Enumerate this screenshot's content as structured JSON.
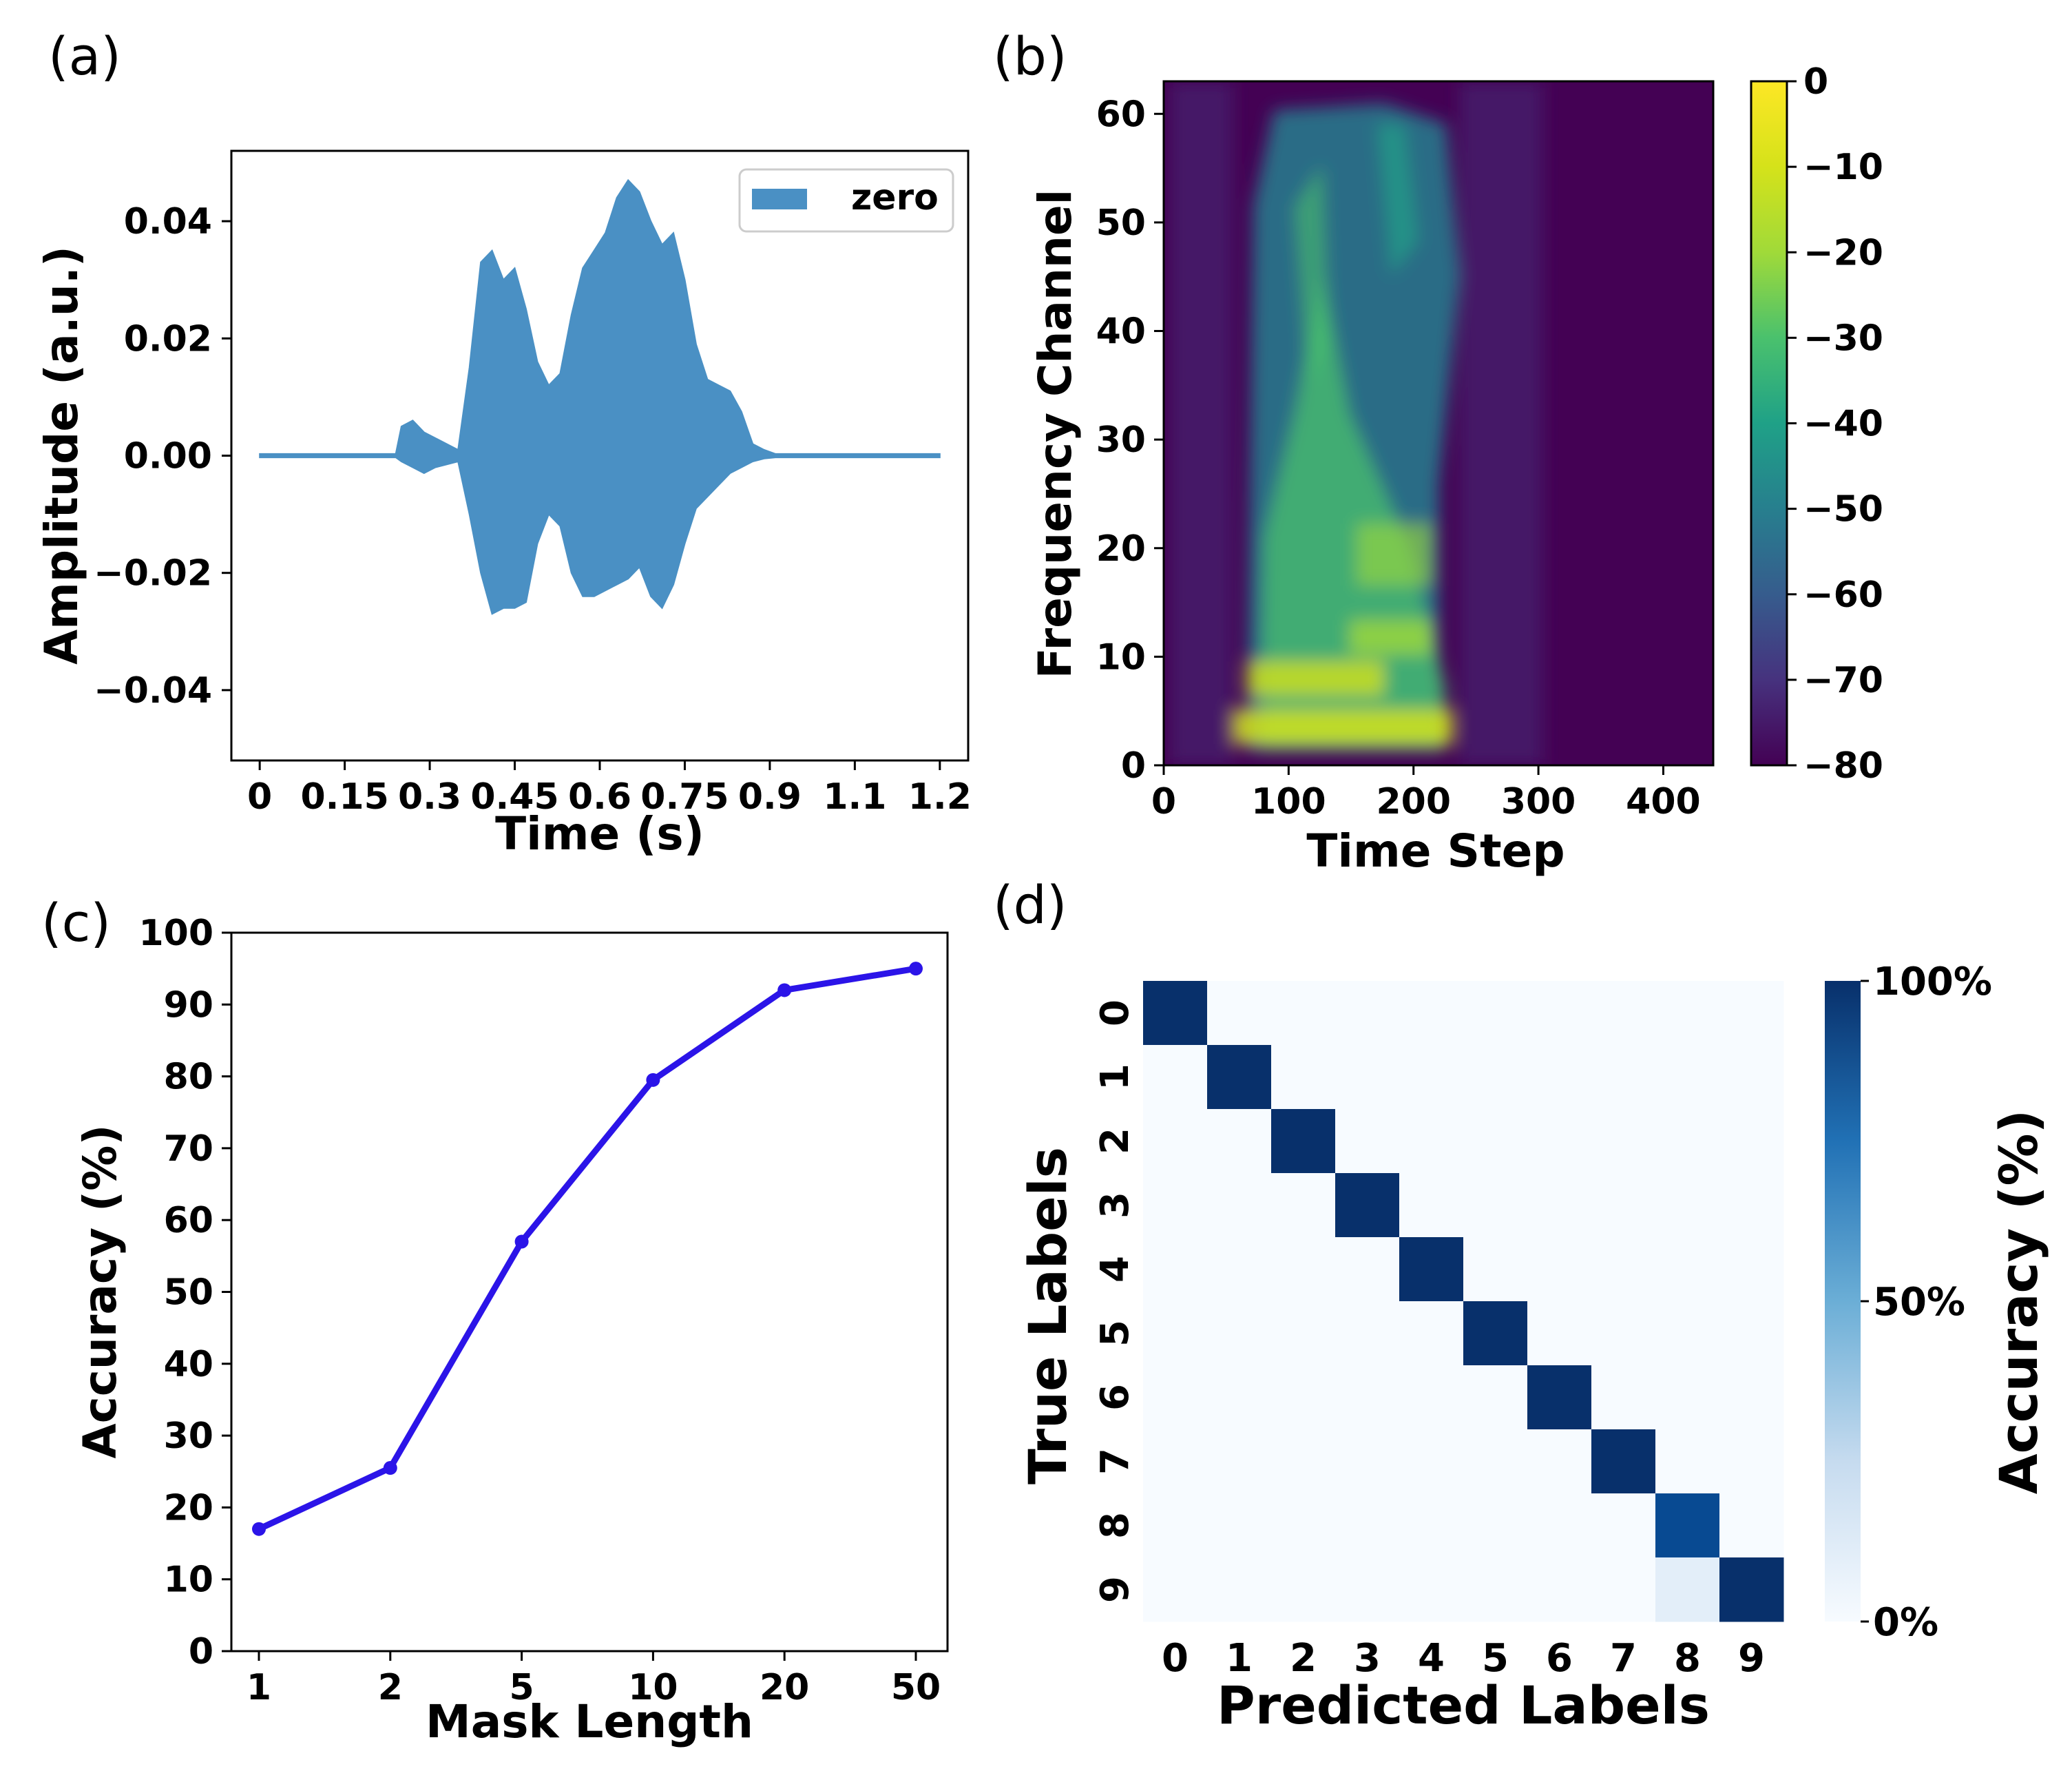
{
  "panels": {
    "a": "(a)",
    "b": "(b)",
    "c": "(c)",
    "d": "(d)"
  },
  "chart_data": [
    {
      "id": "a",
      "type": "area",
      "title": "",
      "xlabel": "Time (s)",
      "ylabel": "Amplitude (a.u.)",
      "xlim": [
        -0.05,
        1.25
      ],
      "ylim": [
        -0.052,
        0.052
      ],
      "xticks": [
        0,
        0.15,
        0.3,
        0.45,
        0.6,
        0.75,
        0.9,
        1.05,
        1.2
      ],
      "xtick_labels": [
        "0",
        "0.15",
        "0.3",
        "0.45",
        "0.6",
        "0.75",
        "0.9",
        "1.1",
        "1.2"
      ],
      "yticks": [
        0.04,
        0.02,
        0.0,
        -0.02,
        -0.04
      ],
      "ytick_labels": [
        "0.04",
        "0.02",
        "0.00",
        "−0.02",
        "−0.04"
      ],
      "legend": "zero",
      "legend_position": "top-right",
      "color": "#4a90c4",
      "envelope_t": [
        0,
        0.24,
        0.25,
        0.27,
        0.29,
        0.31,
        0.33,
        0.35,
        0.37,
        0.39,
        0.41,
        0.43,
        0.45,
        0.47,
        0.49,
        0.51,
        0.53,
        0.55,
        0.57,
        0.59,
        0.61,
        0.63,
        0.65,
        0.67,
        0.69,
        0.71,
        0.73,
        0.75,
        0.77,
        0.79,
        0.81,
        0.83,
        0.85,
        0.87,
        0.89,
        0.91,
        1.2
      ],
      "envelope_upper": [
        0.0003,
        0.0003,
        0.005,
        0.006,
        0.004,
        0.003,
        0.002,
        0.001,
        0.015,
        0.033,
        0.035,
        0.03,
        0.032,
        0.025,
        0.016,
        0.012,
        0.014,
        0.024,
        0.032,
        0.035,
        0.038,
        0.044,
        0.047,
        0.045,
        0.04,
        0.036,
        0.038,
        0.03,
        0.019,
        0.013,
        0.012,
        0.011,
        0.0075,
        0.002,
        0.001,
        0.0003,
        0.0003
      ],
      "envelope_lower": [
        -0.0003,
        -0.0003,
        -0.001,
        -0.002,
        -0.003,
        -0.002,
        -0.0015,
        -0.001,
        -0.01,
        -0.02,
        -0.027,
        -0.026,
        -0.026,
        -0.025,
        -0.015,
        -0.01,
        -0.012,
        -0.02,
        -0.024,
        -0.024,
        -0.023,
        -0.022,
        -0.021,
        -0.019,
        -0.024,
        -0.026,
        -0.022,
        -0.015,
        -0.009,
        -0.007,
        -0.005,
        -0.003,
        -0.002,
        -0.001,
        -0.0005,
        -0.0003,
        -0.0003
      ]
    },
    {
      "id": "b",
      "type": "heatmap",
      "title": "",
      "xlabel": "Time Step",
      "ylabel": "Frequency Channel",
      "xlim": [
        0,
        440
      ],
      "ylim": [
        0,
        63
      ],
      "xticks": [
        0,
        100,
        200,
        300,
        400
      ],
      "yticks": [
        0,
        10,
        20,
        30,
        40,
        50,
        60
      ],
      "colorbar_ticks": [
        0,
        -10,
        -20,
        -30,
        -40,
        -50,
        -60,
        -70,
        -80
      ],
      "colorbar_labels": [
        "0",
        "−10",
        "−20",
        "−30",
        "−40",
        "−50",
        "−60",
        "−70",
        "−80"
      ],
      "colorbar_range": [
        -80,
        0
      ],
      "colormap": "viridis",
      "description": "spectrogram of spoken digit; energy concentrated between time steps 60 and 240, strongest below channel 10"
    },
    {
      "id": "c",
      "type": "line",
      "title": "",
      "xlabel": "Mask Length",
      "ylabel": "Accuracy (%)",
      "categories": [
        "1",
        "2",
        "5",
        "10",
        "20",
        "50"
      ],
      "values": [
        17,
        25.5,
        57,
        79.5,
        92,
        95
      ],
      "ylim": [
        0,
        100
      ],
      "yticks": [
        0,
        10,
        20,
        30,
        40,
        50,
        60,
        70,
        80,
        90,
        100
      ],
      "color": "#2b14e8"
    },
    {
      "id": "d",
      "type": "heatmap",
      "title": "",
      "xlabel": "Predicted Labels",
      "ylabel": "True Labels",
      "row_labels": [
        "0",
        "1",
        "2",
        "3",
        "4",
        "5",
        "6",
        "7",
        "8",
        "9"
      ],
      "col_labels": [
        "0",
        "1",
        "2",
        "3",
        "4",
        "5",
        "6",
        "7",
        "8",
        "9"
      ],
      "matrix": [
        [
          100,
          0,
          0,
          0,
          0,
          0,
          0,
          0,
          0,
          0
        ],
        [
          0,
          100,
          0,
          0,
          0,
          0,
          0,
          0,
          0,
          0
        ],
        [
          0,
          0,
          100,
          0,
          0,
          0,
          0,
          0,
          0,
          0
        ],
        [
          0,
          0,
          0,
          100,
          0,
          0,
          0,
          0,
          0,
          0
        ],
        [
          0,
          0,
          0,
          0,
          100,
          0,
          0,
          0,
          0,
          0
        ],
        [
          0,
          0,
          0,
          0,
          0,
          100,
          0,
          0,
          0,
          0
        ],
        [
          0,
          0,
          0,
          0,
          0,
          0,
          100,
          0,
          0,
          0
        ],
        [
          0,
          0,
          0,
          0,
          0,
          0,
          0,
          100,
          0,
          0
        ],
        [
          0,
          0,
          0,
          0,
          0,
          0,
          0,
          0,
          90,
          0
        ],
        [
          0,
          0,
          0,
          0,
          0,
          0,
          0,
          0,
          10,
          100
        ]
      ],
      "colorbar_label": "Accuracy (%)",
      "colorbar_ticks": [
        "100%",
        "50%",
        "0%"
      ],
      "colormap": "Blues"
    }
  ]
}
